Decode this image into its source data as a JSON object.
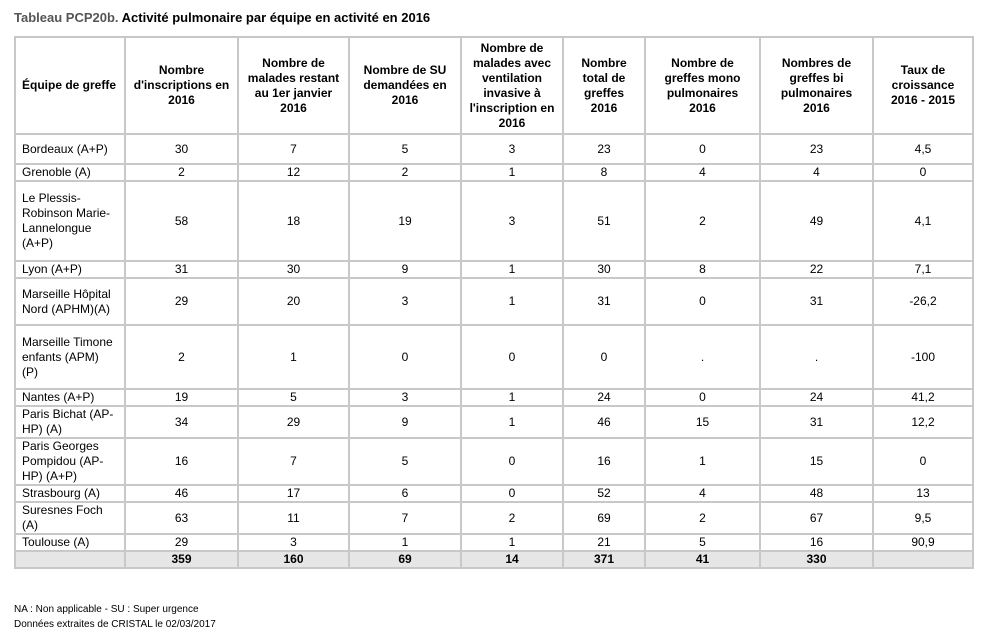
{
  "title_prefix": "Tableau PCP20b.",
  "title": "Activité pulmonaire par équipe en activité en 2016",
  "headers": [
    "Équipe de greffe",
    "Nombre d'inscriptions en 2016",
    "Nombre de malades restant au 1er janvier 2016",
    "Nombre de SU demandées en 2016",
    "Nombre de malades avec ventilation invasive à l'inscription en 2016",
    "Nombre total de greffes 2016",
    "Nombre de greffes mono pulmonaires 2016",
    "Nombres de greffes bi pulmonaires 2016",
    "Taux de croissance 2016 - 2015"
  ],
  "rows": [
    [
      "Bordeaux (A+P)",
      "30",
      "7",
      "5",
      "3",
      "23",
      "0",
      "23",
      "4,5"
    ],
    [
      "Grenoble (A)",
      "2",
      "12",
      "2",
      "1",
      "8",
      "4",
      "4",
      "0"
    ],
    [
      "Le Plessis-Robinson Marie-Lannelongue (A+P)",
      "58",
      "18",
      "19",
      "3",
      "51",
      "2",
      "49",
      "4,1"
    ],
    [
      "Lyon (A+P)",
      "31",
      "30",
      "9",
      "1",
      "30",
      "8",
      "22",
      "7,1"
    ],
    [
      "Marseille Hôpital Nord (APHM)(A)",
      "29",
      "20",
      "3",
      "1",
      "31",
      "0",
      "31",
      "-26,2"
    ],
    [
      "Marseille Timone enfants (APM) (P)",
      "2",
      "1",
      "0",
      "0",
      "0",
      ".",
      ".",
      "-100"
    ],
    [
      "Nantes (A+P)",
      "19",
      "5",
      "3",
      "1",
      "24",
      "0",
      "24",
      "41,2"
    ],
    [
      "Paris Bichat (AP-HP) (A)",
      "34",
      "29",
      "9",
      "1",
      "46",
      "15",
      "31",
      "12,2"
    ],
    [
      "Paris Georges Pompidou (AP-HP) (A+P)",
      "16",
      "7",
      "5",
      "0",
      "16",
      "1",
      "15",
      "0"
    ],
    [
      "Strasbourg (A)",
      "46",
      "17",
      "6",
      "0",
      "52",
      "4",
      "48",
      "13"
    ],
    [
      "Suresnes Foch (A)",
      "63",
      "11",
      "7",
      "2",
      "69",
      "2",
      "67",
      "9,5"
    ],
    [
      "Toulouse (A)",
      "29",
      "3",
      "1",
      "1",
      "21",
      "5",
      "16",
      "90,9"
    ]
  ],
  "total": [
    "",
    "359",
    "160",
    "69",
    "14",
    "371",
    "41",
    "330",
    ""
  ],
  "footnotes": [
    "NA : Non applicable - SU : Super urgence",
    "Données extraites de CRISTAL le 02/03/2017"
  ]
}
